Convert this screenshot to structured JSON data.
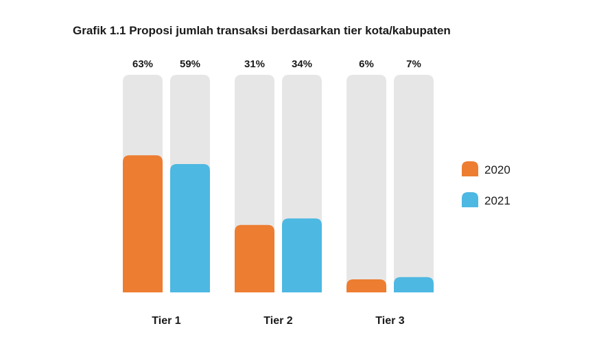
{
  "chart_data": {
    "type": "bar",
    "title": "Grafik 1.1 Proposi jumlah transaksi berdasarkan tier kota/kabupaten",
    "categories": [
      "Tier 1",
      "Tier 2",
      "Tier 3"
    ],
    "series": [
      {
        "name": "2020",
        "values": [
          63,
          31,
          6
        ],
        "labels": [
          "63%",
          "31%",
          "6%"
        ],
        "color": "#ED7D31"
      },
      {
        "name": "2021",
        "values": [
          59,
          34,
          7
        ],
        "labels": [
          "59%",
          "34%",
          "7%"
        ],
        "color": "#4DB8E2"
      }
    ],
    "unit": "%",
    "ylim": [
      0,
      100
    ],
    "background_track_color": "#E6E6E6",
    "grid": false,
    "legend_position": "right"
  }
}
